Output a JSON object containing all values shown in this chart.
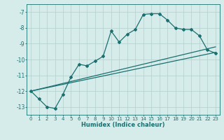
{
  "xlabel": "Humidex (Indice chaleur)",
  "background_color": "#d6ecea",
  "grid_color": "#b8d4d0",
  "line_color": "#1a7070",
  "xlim": [
    -0.5,
    23.5
  ],
  "ylim": [
    -13.5,
    -6.5
  ],
  "yticks": [
    -13,
    -12,
    -11,
    -10,
    -9,
    -8,
    -7
  ],
  "xticks": [
    0,
    1,
    2,
    3,
    4,
    5,
    6,
    7,
    8,
    9,
    10,
    11,
    12,
    13,
    14,
    15,
    16,
    17,
    18,
    19,
    20,
    21,
    22,
    23
  ],
  "line1_x": [
    0,
    1,
    2,
    3,
    4,
    5,
    6,
    7,
    8,
    9,
    10,
    11,
    12,
    13,
    14,
    15,
    16,
    17,
    18,
    19,
    20,
    21,
    22,
    23
  ],
  "line1_y": [
    -12.0,
    -12.5,
    -13.0,
    -13.1,
    -12.2,
    -11.1,
    -10.3,
    -10.4,
    -10.1,
    -9.8,
    -8.2,
    -8.9,
    -8.4,
    -8.1,
    -7.15,
    -7.1,
    -7.1,
    -7.5,
    -8.0,
    -8.1,
    -8.1,
    -8.5,
    -9.4,
    -9.6
  ],
  "line2_x": [
    0,
    23
  ],
  "line2_y": [
    -12.0,
    -9.55
  ],
  "line3_x": [
    0,
    23
  ],
  "line3_y": [
    -12.0,
    -9.2
  ]
}
